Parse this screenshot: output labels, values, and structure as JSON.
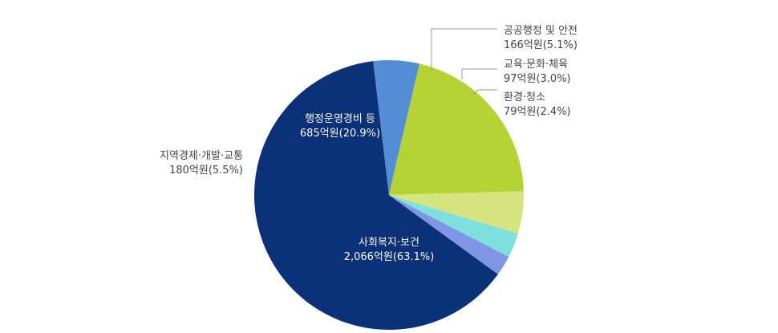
{
  "chart_data": {
    "type": "pie",
    "slices": [
      {
        "label": "사회복지·보건",
        "value_text": "2,066억원(63.1%)",
        "value": 2066,
        "percent": 63.1,
        "color": "#0b3278",
        "text_color": "#ffffff"
      },
      {
        "label": "지역경제·개발·교통",
        "value_text": "180억원(5.5%)",
        "value": 180,
        "percent": 5.5,
        "color": "#548dd4",
        "text_color": "#444444"
      },
      {
        "label": "행정운영경비 등",
        "value_text": "685억원(20.9%)",
        "value": 685,
        "percent": 20.9,
        "color": "#b5d334",
        "text_color": "#ffffff"
      },
      {
        "label": "공공행정 및 안전",
        "value_text": "166억원(5.1%)",
        "value": 166,
        "percent": 5.1,
        "color": "#d6e47f",
        "text_color": "#444444"
      },
      {
        "label": "교육·문화·체육",
        "value_text": "97억원(3.0%)",
        "value": 97,
        "percent": 3.0,
        "color": "#7ee0dc",
        "text_color": "#444444"
      },
      {
        "label": "환경·청소",
        "value_text": "79억원(2.4%)",
        "value": 79,
        "percent": 2.4,
        "color": "#7f95e6",
        "text_color": "#444444"
      }
    ]
  }
}
